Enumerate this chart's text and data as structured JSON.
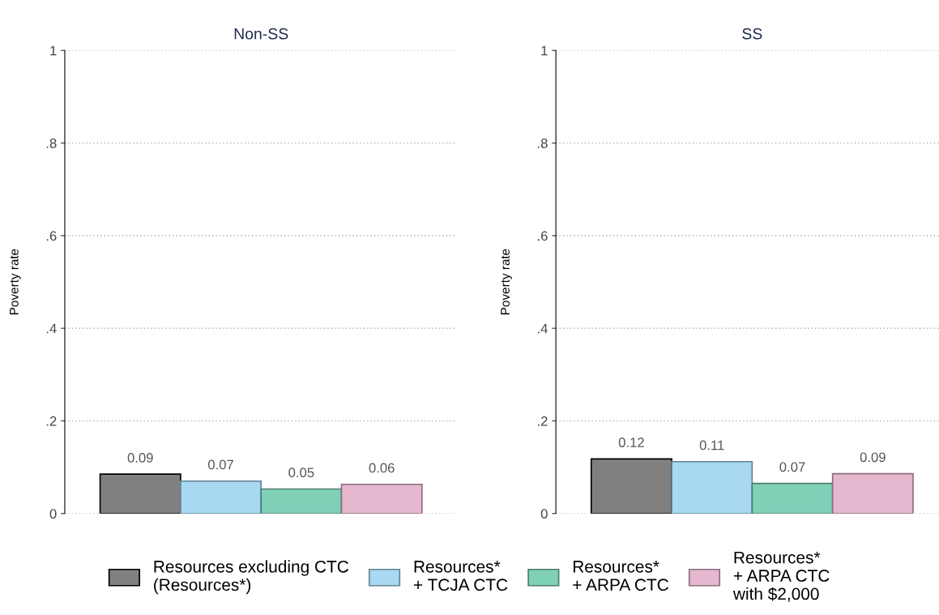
{
  "chart_data": [
    {
      "type": "bar",
      "title": "Non-SS",
      "ylabel": "Poverty rate",
      "categories": [
        null
      ],
      "ylim": [
        0,
        1
      ],
      "yticks": [
        0,
        {
          "value": 0.2,
          "label": ".2"
        },
        {
          "value": 0.4,
          "label": ".4"
        },
        {
          "value": 0.6,
          "label": ".6"
        },
        {
          "value": 0.8,
          "label": ".8"
        },
        1
      ],
      "grid": "y",
      "legend": "bottom",
      "series": [
        {
          "name": "Resources excluding CTC\n(Resources*)",
          "color": "#808080",
          "values": [
            0.085
          ],
          "value_labels": [
            "0.09"
          ]
        },
        {
          "name": "Resources*\n+ TCJA CTC",
          "color": "#a8d8f2",
          "values": [
            0.07
          ],
          "value_labels": [
            "0.07"
          ]
        },
        {
          "name": "Resources*\n+ ARPA CTC",
          "color": "#80d0b8",
          "values": [
            0.053
          ],
          "value_labels": [
            "0.05"
          ]
        },
        {
          "name": "Resources*\n+ ARPA CTC\nwith $2,000",
          "color": "#e6b8d0",
          "values": [
            0.063
          ],
          "value_labels": [
            "0.06"
          ]
        }
      ]
    },
    {
      "type": "bar",
      "title": "SS",
      "ylabel": "Poverty rate",
      "categories": [
        null
      ],
      "ylim": [
        0,
        1
      ],
      "yticks": [
        0,
        {
          "value": 0.2,
          "label": ".2"
        },
        {
          "value": 0.4,
          "label": ".4"
        },
        {
          "value": 0.6,
          "label": ".6"
        },
        {
          "value": 0.8,
          "label": ".8"
        },
        1
      ],
      "grid": "y",
      "series": [
        {
          "color": "#808080",
          "values": [
            0.118
          ],
          "value_labels": [
            "0.12"
          ]
        },
        {
          "color": "#a8d8f2",
          "values": [
            0.112
          ],
          "value_labels": [
            "0.11"
          ]
        },
        {
          "color": "#80d0b8",
          "values": [
            0.065
          ],
          "value_labels": [
            "0.07"
          ]
        },
        {
          "color": "#e6b8d0",
          "values": [
            0.086
          ],
          "value_labels": [
            "0.09"
          ]
        }
      ]
    }
  ]
}
